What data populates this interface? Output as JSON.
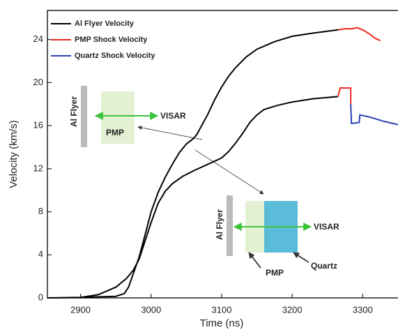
{
  "chart_data": {
    "type": "line",
    "xlabel": "Time (ns)",
    "ylabel": "Velocity (km/s)",
    "xlim": [
      2853,
      3350
    ],
    "ylim": [
      0,
      26.7
    ],
    "xticks": [
      2900,
      3000,
      3100,
      3200,
      3300
    ],
    "yticks": [
      0,
      4,
      8,
      12,
      16,
      20,
      24
    ],
    "legend": "upper left",
    "series": [
      {
        "name": "Al Flyer Velocity",
        "color": "#000000",
        "x": [
          2853,
          2900,
          2950,
          2962,
          2968,
          2975,
          2983,
          2990,
          3000,
          3010,
          3020,
          3030,
          3040,
          3050,
          3060,
          3065,
          3070,
          3080,
          3090,
          3100,
          3110,
          3120,
          3135,
          3150,
          3175,
          3200,
          3230,
          3265,
          null,
          2853,
          2900,
          2925,
          2950,
          2965,
          2975,
          2983,
          2990,
          3000,
          3010,
          3020,
          3030,
          3045,
          3060,
          3080,
          3100,
          3110,
          3120,
          3130,
          3140,
          3150,
          3160,
          3180,
          3200,
          3230,
          3265
        ],
        "values": [
          0,
          0.05,
          0.15,
          0.4,
          1.0,
          2.3,
          3.8,
          5.5,
          8.0,
          9.8,
          11.2,
          12.4,
          13.5,
          14.3,
          14.8,
          15.2,
          15.8,
          17.0,
          18.4,
          19.6,
          20.6,
          21.4,
          22.4,
          23.1,
          23.8,
          24.3,
          24.6,
          24.9,
          null,
          0,
          0.05,
          0.3,
          1.0,
          1.8,
          2.6,
          3.6,
          5.0,
          7.0,
          8.8,
          9.9,
          10.6,
          11.3,
          11.8,
          12.4,
          13.0,
          13.6,
          14.4,
          15.3,
          16.3,
          17.0,
          17.5,
          17.9,
          18.2,
          18.5,
          18.7
        ]
      },
      {
        "name": "PMP Shock Velocity",
        "color": "#e8281e",
        "x": [
          3265,
          3275,
          3285,
          3292,
          3300,
          3310,
          3318,
          3325,
          null,
          3265,
          3268,
          3283,
          3283
        ],
        "values": [
          24.9,
          25.0,
          25.0,
          25.1,
          24.9,
          24.5,
          24.1,
          23.9,
          null,
          18.7,
          19.5,
          19.5,
          18.0
        ]
      },
      {
        "name": "Quartz Shock Velocity",
        "color": "#2a3fb5",
        "x": [
          3283,
          3284,
          3295,
          3296,
          3310,
          3330,
          3350
        ],
        "values": [
          18.0,
          16.2,
          16.3,
          17.0,
          16.8,
          16.4,
          16.1
        ]
      }
    ],
    "annotations": [
      "Al Flyer",
      "VISAR",
      "PMP",
      "Al Flyer",
      "VISAR",
      "PMP",
      "Quartz"
    ]
  }
}
